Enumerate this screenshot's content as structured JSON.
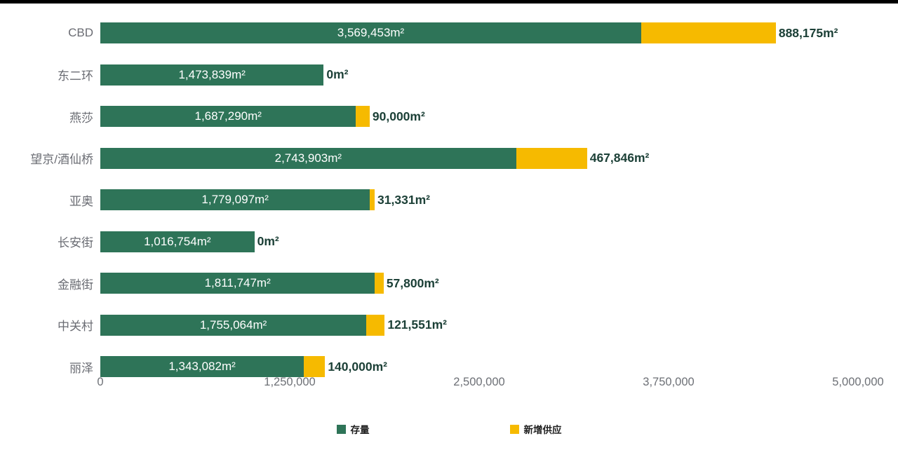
{
  "page": {
    "background": "#ffffff",
    "top_strip_color": "#000000"
  },
  "chart_data": {
    "type": "bar",
    "orientation": "horizontal",
    "stacked": true,
    "title": "",
    "xlabel": "",
    "ylabel": "",
    "unit": "m²",
    "xlim": [
      0,
      5000000
    ],
    "grid": false,
    "legend_position": "bottom-center",
    "colors": {
      "stock_green": "#2e7458",
      "new_supply_yellow": "#f6ba00",
      "outside_label_text": "#1c4037",
      "inside_label_text": "#ffffff",
      "category_text": "#6a6c73",
      "axis_text": "#6d7076"
    },
    "x_ticks": [
      {
        "value": 0,
        "label": "0"
      },
      {
        "value": 1250000,
        "label": "1,250,000"
      },
      {
        "value": 2500000,
        "label": "2,500,000"
      },
      {
        "value": 3750000,
        "label": "3,750,000"
      },
      {
        "value": 5000000,
        "label": "5,000,000"
      }
    ],
    "legend": [
      {
        "name": "存量",
        "color": "#2e7458"
      },
      {
        "name": "新增供应",
        "color": "#f6ba00"
      }
    ],
    "categories": [
      "CBD",
      "东二环",
      "燕莎",
      "望京/酒仙桥",
      "亚奥",
      "长安街",
      "金融街",
      "中关村",
      "丽泽"
    ],
    "series": [
      {
        "name": "存量",
        "values": [
          3569453,
          1473839,
          1687290,
          2743903,
          1779097,
          1016754,
          1811747,
          1755064,
          1343082
        ]
      },
      {
        "name": "新增供应",
        "values": [
          888175,
          0,
          90000,
          467846,
          31331,
          0,
          57800,
          121551,
          140000
        ]
      }
    ],
    "rows": [
      {
        "category": "CBD",
        "stock": 3569453,
        "stock_label": "3,569,453m²",
        "new_supply": 888175,
        "new_supply_label": "888,175m²"
      },
      {
        "category": "东二环",
        "stock": 1473839,
        "stock_label": "1,473,839m²",
        "new_supply": 0,
        "new_supply_label": "0m²"
      },
      {
        "category": "燕莎",
        "stock": 1687290,
        "stock_label": "1,687,290m²",
        "new_supply": 90000,
        "new_supply_label": "90,000m²"
      },
      {
        "category": "望京/酒仙桥",
        "stock": 2743903,
        "stock_label": "2,743,903m²",
        "new_supply": 467846,
        "new_supply_label": "467,846m²"
      },
      {
        "category": "亚奥",
        "stock": 1779097,
        "stock_label": "1,779,097m²",
        "new_supply": 31331,
        "new_supply_label": "31,331m²"
      },
      {
        "category": "长安街",
        "stock": 1016754,
        "stock_label": "1,016,754m²",
        "new_supply": 0,
        "new_supply_label": "0m²"
      },
      {
        "category": "金融街",
        "stock": 1811747,
        "stock_label": "1,811,747m²",
        "new_supply": 57800,
        "new_supply_label": "57,800m²"
      },
      {
        "category": "中关村",
        "stock": 1755064,
        "stock_label": "1,755,064m²",
        "new_supply": 121551,
        "new_supply_label": "121,551m²"
      },
      {
        "category": "丽泽",
        "stock": 1343082,
        "stock_label": "1,343,082m²",
        "new_supply": 140000,
        "new_supply_label": "140,000m²"
      }
    ]
  }
}
